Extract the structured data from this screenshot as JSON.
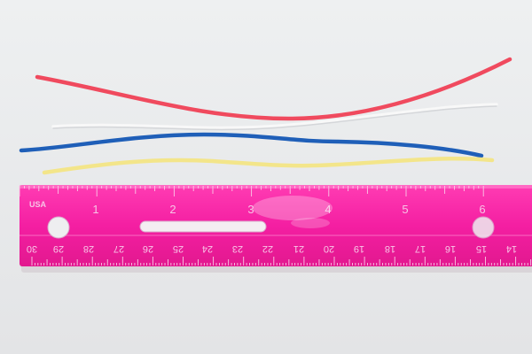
{
  "photo": {
    "background_color": "#e9eaeb",
    "wires": [
      {
        "color_name": "red",
        "color": "#f04a5e"
      },
      {
        "color_name": "white",
        "color": "#f8f8f8"
      },
      {
        "color_name": "blue",
        "color": "#1f5fb8"
      },
      {
        "color_name": "yellow",
        "color": "#f3e58a"
      }
    ],
    "ruler": {
      "color": "#f41fa2",
      "brand": "USA",
      "inch_labels": [
        "1",
        "2",
        "3",
        "4",
        "5",
        "6"
      ],
      "cm_labels": [
        "30",
        "29",
        "28",
        "27",
        "26",
        "25",
        "24",
        "23",
        "22",
        "21",
        "20",
        "19",
        "18",
        "17",
        "16",
        "15",
        "14"
      ]
    }
  }
}
